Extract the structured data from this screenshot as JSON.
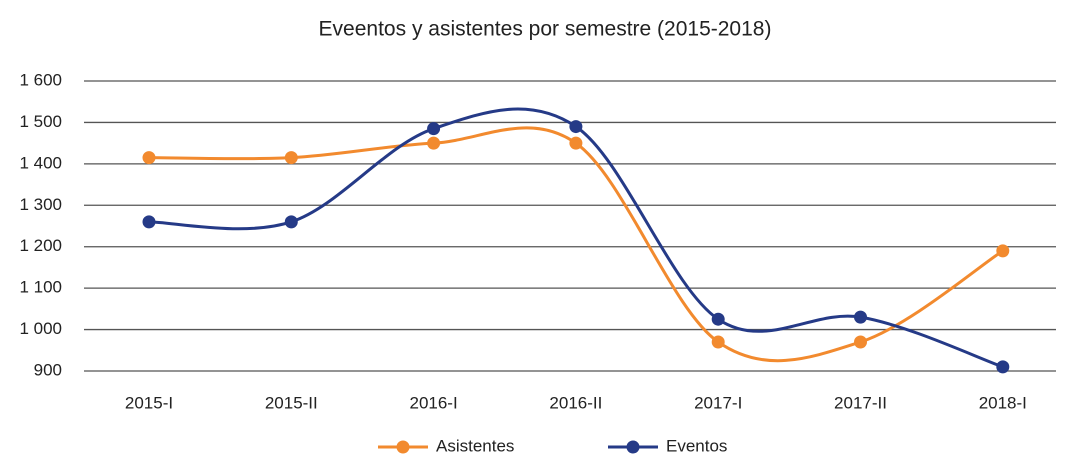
{
  "chart_data": {
    "type": "line",
    "title": "Eveentos y asistentes por semestre (2015-2018)",
    "categories": [
      "2015-I",
      "2015-II",
      "2016-I",
      "2016-II",
      "2017-I",
      "2017-II",
      "2018-I"
    ],
    "series": [
      {
        "name": "Asistentes",
        "color": "#f28a2e",
        "values": [
          1415,
          1415,
          1450,
          1450,
          970,
          970,
          1190
        ]
      },
      {
        "name": "Eventos",
        "color": "#253a87",
        "values": [
          1260,
          1260,
          1485,
          1490,
          1025,
          1030,
          910
        ]
      }
    ],
    "ylim": [
      900,
      1600
    ],
    "yticks": [
      900,
      {
        "value": 1000,
        "label": "1 000"
      },
      {
        "value": 1100,
        "label": "1 100"
      },
      {
        "value": 1200,
        "label": "1 200"
      },
      {
        "value": 1300,
        "label": "1 300"
      },
      {
        "value": 1400,
        "label": "1 400"
      },
      {
        "value": 1500,
        "label": "1 500"
      },
      {
        "value": 1600,
        "label": "1 600"
      }
    ],
    "grid": true,
    "smooth": true,
    "legend": "bottom"
  }
}
